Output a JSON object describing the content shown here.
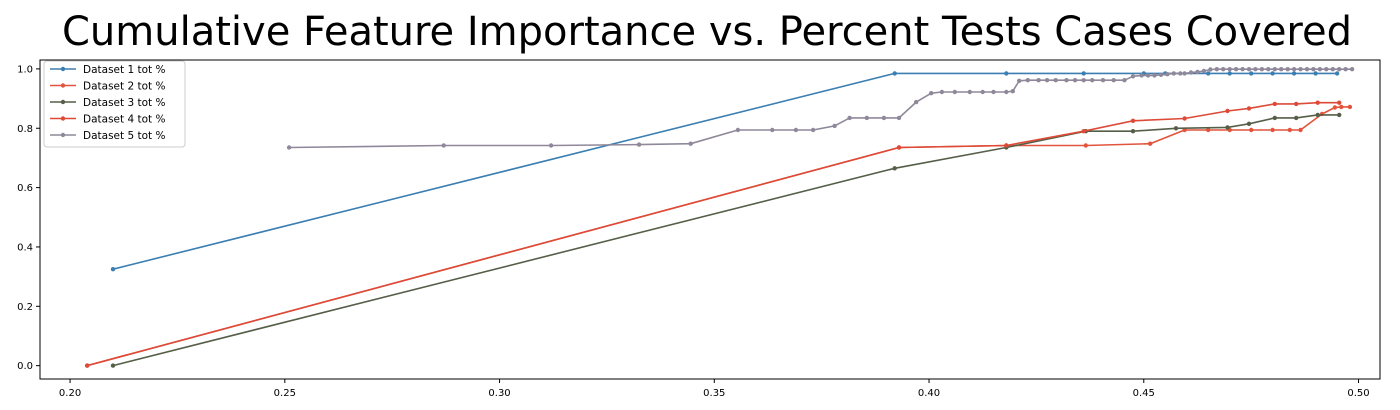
{
  "chart_data": {
    "type": "line",
    "title": "Cumulative Feature Importance vs. Percent Tests Cases Covered",
    "xlabel": "",
    "ylabel": "",
    "xlim": [
      0.193,
      0.505
    ],
    "ylim": [
      -0.045,
      1.03
    ],
    "x_ticks": [
      0.2,
      0.25,
      0.3,
      0.35,
      0.4,
      0.45,
      0.5
    ],
    "x_tick_labels": [
      "0.20",
      "0.25",
      "0.30",
      "0.35",
      "0.40",
      "0.45",
      "0.50"
    ],
    "y_ticks": [
      0.0,
      0.2,
      0.4,
      0.6,
      0.8,
      1.0
    ],
    "y_tick_labels": [
      "0.0",
      "0.2",
      "0.4",
      "0.6",
      "0.8",
      "1.0"
    ],
    "grid": false,
    "legend_position": "top-left",
    "series": [
      {
        "name": "Dataset 1 tot %",
        "color": "#3b7fb2",
        "x": [
          0.21,
          0.392,
          0.418,
          0.436,
          0.45,
          0.455,
          0.465,
          0.47,
          0.475,
          0.48,
          0.485,
          0.49,
          0.495
        ],
        "y": [
          0.325,
          0.985,
          0.985,
          0.985,
          0.985,
          0.985,
          0.985,
          0.985,
          0.985,
          0.985,
          0.985,
          0.985,
          0.985
        ]
      },
      {
        "name": "Dataset 2 tot %",
        "color": "#e2543c",
        "x": [
          0.204,
          0.393,
          0.418,
          0.4365,
          0.4515,
          0.4595,
          0.465,
          0.47,
          0.475,
          0.48,
          0.484,
          0.4865,
          0.4915,
          0.4945,
          0.496,
          0.498
        ],
        "y": [
          0.0,
          0.735,
          0.742,
          0.742,
          0.748,
          0.794,
          0.794,
          0.794,
          0.794,
          0.794,
          0.794,
          0.794,
          0.848,
          0.87,
          0.872,
          0.872
        ]
      },
      {
        "name": "Dataset 3 tot %",
        "color": "#555f48",
        "x": [
          0.21,
          0.392,
          0.418,
          0.4365,
          0.4475,
          0.4575,
          0.4695,
          0.4745,
          0.4805,
          0.4855,
          0.4905,
          0.4955
        ],
        "y": [
          0.0,
          0.665,
          0.735,
          0.79,
          0.79,
          0.8,
          0.803,
          0.815,
          0.835,
          0.835,
          0.845,
          0.845
        ]
      },
      {
        "name": "Dataset 4 tot %",
        "color": "#dd4a37",
        "x": [
          0.204,
          0.393,
          0.418,
          0.436,
          0.4475,
          0.4595,
          0.4695,
          0.4745,
          0.4805,
          0.4855,
          0.4905,
          0.4955
        ],
        "y": [
          0.0,
          0.735,
          0.742,
          0.79,
          0.825,
          0.833,
          0.858,
          0.867,
          0.882,
          0.882,
          0.886,
          0.886
        ]
      },
      {
        "name": "Dataset 5 tot %",
        "color": "#8f889a",
        "x": [
          0.251,
          0.287,
          0.312,
          0.3325,
          0.3445,
          0.3555,
          0.3635,
          0.369,
          0.373,
          0.378,
          0.3815,
          0.3855,
          0.3895,
          0.393,
          0.397,
          0.4005,
          0.403,
          0.406,
          0.4095,
          0.4125,
          0.415,
          0.418,
          0.4195,
          0.421,
          0.423,
          0.4255,
          0.4275,
          0.4295,
          0.432,
          0.434,
          0.436,
          0.438,
          0.4405,
          0.443,
          0.4455,
          0.4475,
          0.4495,
          0.451,
          0.4525,
          0.454,
          0.4555,
          0.457,
          0.4585,
          0.4595,
          0.461,
          0.4625,
          0.464,
          0.4655,
          0.467,
          0.4685,
          0.47,
          0.4715,
          0.473,
          0.4745,
          0.476,
          0.4775,
          0.479,
          0.4805,
          0.482,
          0.4835,
          0.485,
          0.4865,
          0.488,
          0.4895,
          0.491,
          0.4925,
          0.494,
          0.4955,
          0.497,
          0.4985
        ],
        "y": [
          0.735,
          0.742,
          0.742,
          0.745,
          0.748,
          0.794,
          0.794,
          0.794,
          0.794,
          0.808,
          0.835,
          0.835,
          0.835,
          0.835,
          0.888,
          0.918,
          0.922,
          0.922,
          0.922,
          0.922,
          0.922,
          0.922,
          0.925,
          0.96,
          0.962,
          0.962,
          0.962,
          0.962,
          0.962,
          0.962,
          0.962,
          0.962,
          0.962,
          0.962,
          0.962,
          0.975,
          0.978,
          0.978,
          0.978,
          0.98,
          0.982,
          0.985,
          0.985,
          0.985,
          0.988,
          0.99,
          0.993,
          0.998,
          0.999,
          0.999,
          0.999,
          0.999,
          0.999,
          0.999,
          0.999,
          0.999,
          0.999,
          0.999,
          0.999,
          0.999,
          0.999,
          0.999,
          0.999,
          0.999,
          0.999,
          0.999,
          0.999,
          0.999,
          0.999,
          0.999
        ]
      }
    ]
  }
}
